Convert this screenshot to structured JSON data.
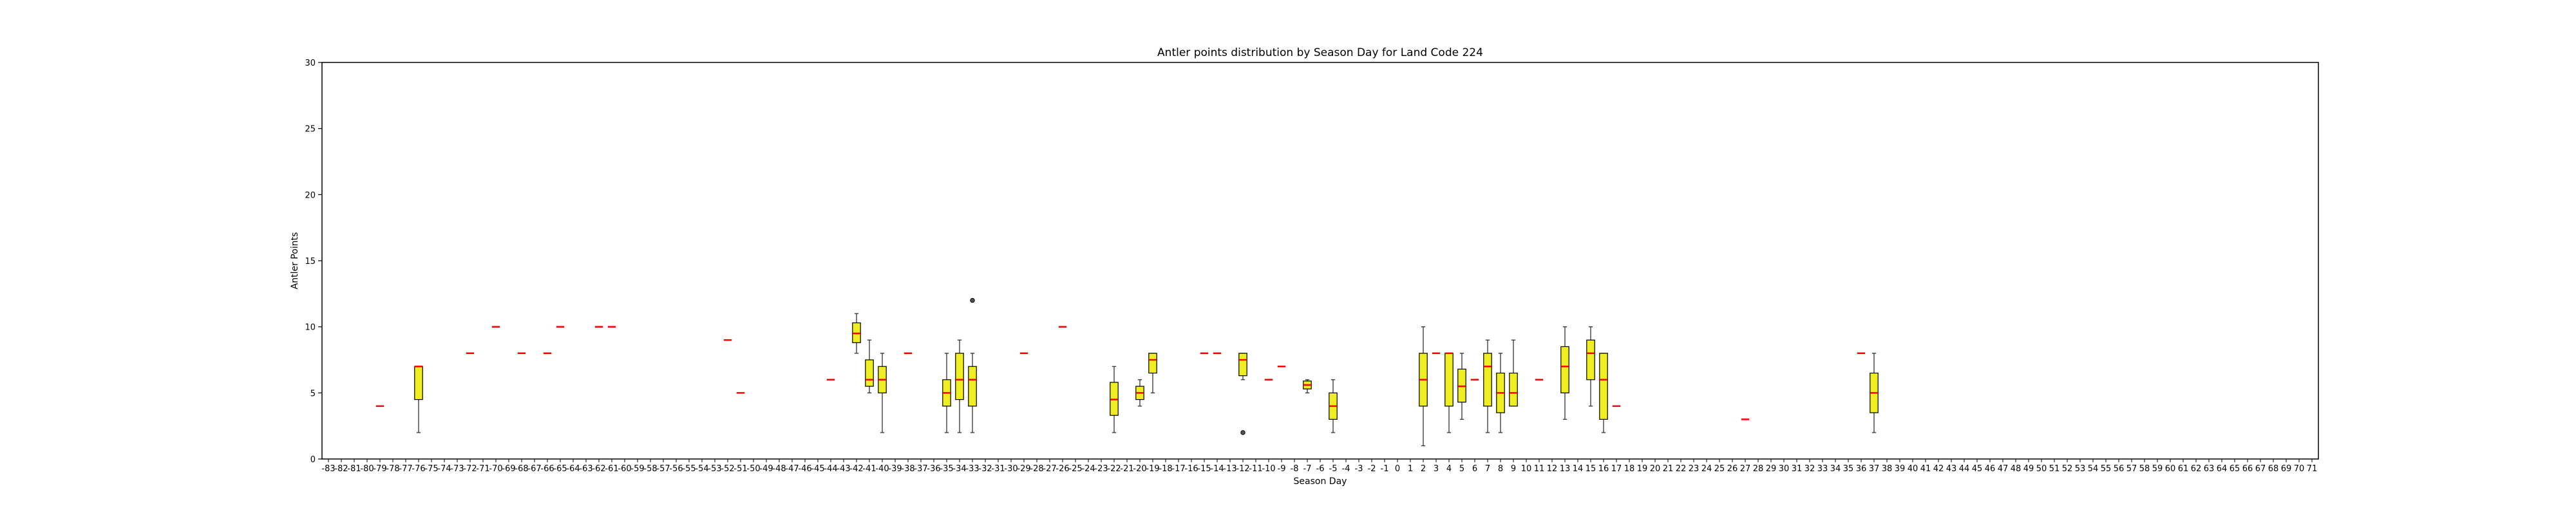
{
  "chart_data": {
    "type": "box",
    "title": "Antler points distribution by Season Day for Land Code 224",
    "xlabel": "Season Day",
    "ylabel": "Antler Points",
    "ylim": [
      0,
      30
    ],
    "yticks": [
      0,
      5,
      10,
      15,
      20,
      25,
      30
    ],
    "x_categories_range": [
      -83,
      71
    ],
    "grid": false,
    "colors": {
      "box_fill": "#eeee22",
      "median": "#ff0000",
      "outline": "#000000",
      "whisker": "#333333"
    },
    "boxes": [
      {
        "day": -79,
        "q1": 4,
        "median": 4,
        "q3": 4,
        "whislo": 4,
        "whishi": 4,
        "fliers": []
      },
      {
        "day": -76,
        "q1": 4.5,
        "median": 7,
        "q3": 7,
        "whislo": 2,
        "whishi": 7,
        "fliers": []
      },
      {
        "day": -72,
        "q1": 8,
        "median": 8,
        "q3": 8,
        "whislo": 8,
        "whishi": 8,
        "fliers": []
      },
      {
        "day": -70,
        "q1": 10,
        "median": 10,
        "q3": 10,
        "whislo": 10,
        "whishi": 10,
        "fliers": []
      },
      {
        "day": -68,
        "q1": 8,
        "median": 8,
        "q3": 8,
        "whislo": 8,
        "whishi": 8,
        "fliers": []
      },
      {
        "day": -66,
        "q1": 8,
        "median": 8,
        "q3": 8,
        "whislo": 8,
        "whishi": 8,
        "fliers": []
      },
      {
        "day": -65,
        "q1": 10,
        "median": 10,
        "q3": 10,
        "whislo": 10,
        "whishi": 10,
        "fliers": []
      },
      {
        "day": -62,
        "q1": 10,
        "median": 10,
        "q3": 10,
        "whislo": 10,
        "whishi": 10,
        "fliers": []
      },
      {
        "day": -61,
        "q1": 10,
        "median": 10,
        "q3": 10,
        "whislo": 10,
        "whishi": 10,
        "fliers": []
      },
      {
        "day": -52,
        "q1": 9,
        "median": 9,
        "q3": 9,
        "whislo": 9,
        "whishi": 9,
        "fliers": []
      },
      {
        "day": -51,
        "q1": 5,
        "median": 5,
        "q3": 5,
        "whislo": 5,
        "whishi": 5,
        "fliers": []
      },
      {
        "day": -44,
        "q1": 6,
        "median": 6,
        "q3": 6,
        "whislo": 6,
        "whishi": 6,
        "fliers": []
      },
      {
        "day": -42,
        "q1": 8.8,
        "median": 9.5,
        "q3": 10.3,
        "whislo": 8,
        "whishi": 11,
        "fliers": []
      },
      {
        "day": -41,
        "q1": 5.5,
        "median": 6,
        "q3": 7.5,
        "whislo": 5,
        "whishi": 9,
        "fliers": []
      },
      {
        "day": -40,
        "q1": 5,
        "median": 6,
        "q3": 7,
        "whislo": 2,
        "whishi": 8,
        "fliers": []
      },
      {
        "day": -38,
        "q1": 8,
        "median": 8,
        "q3": 8,
        "whislo": 8,
        "whishi": 8,
        "fliers": []
      },
      {
        "day": -35,
        "q1": 4,
        "median": 5,
        "q3": 6,
        "whislo": 2,
        "whishi": 8,
        "fliers": []
      },
      {
        "day": -34,
        "q1": 4.5,
        "median": 6,
        "q3": 8,
        "whislo": 2,
        "whishi": 9,
        "fliers": []
      },
      {
        "day": -33,
        "q1": 4,
        "median": 6,
        "q3": 7,
        "whislo": 2,
        "whishi": 8,
        "fliers": [
          12
        ]
      },
      {
        "day": -29,
        "q1": 8,
        "median": 8,
        "q3": 8,
        "whislo": 8,
        "whishi": 8,
        "fliers": []
      },
      {
        "day": -26,
        "q1": 10,
        "median": 10,
        "q3": 10,
        "whislo": 10,
        "whishi": 10,
        "fliers": []
      },
      {
        "day": -22,
        "q1": 3.3,
        "median": 4.5,
        "q3": 5.8,
        "whislo": 2,
        "whishi": 7,
        "fliers": []
      },
      {
        "day": -20,
        "q1": 4.5,
        "median": 5,
        "q3": 5.5,
        "whislo": 4,
        "whishi": 6,
        "fliers": []
      },
      {
        "day": -19,
        "q1": 6.5,
        "median": 7.5,
        "q3": 8,
        "whislo": 5,
        "whishi": 8,
        "fliers": []
      },
      {
        "day": -15,
        "q1": 8,
        "median": 8,
        "q3": 8,
        "whislo": 8,
        "whishi": 8,
        "fliers": []
      },
      {
        "day": -14,
        "q1": 8,
        "median": 8,
        "q3": 8,
        "whislo": 8,
        "whishi": 8,
        "fliers": []
      },
      {
        "day": -12,
        "q1": 6.3,
        "median": 7.5,
        "q3": 8,
        "whislo": 6,
        "whishi": 8,
        "fliers": [
          2
        ]
      },
      {
        "day": -10,
        "q1": 6,
        "median": 6,
        "q3": 6,
        "whislo": 6,
        "whishi": 6,
        "fliers": []
      },
      {
        "day": -9,
        "q1": 7,
        "median": 7,
        "q3": 7,
        "whislo": 7,
        "whishi": 7,
        "fliers": []
      },
      {
        "day": -7,
        "q1": 5.3,
        "median": 5.6,
        "q3": 5.9,
        "whislo": 5,
        "whishi": 6,
        "fliers": []
      },
      {
        "day": -5,
        "q1": 3,
        "median": 4,
        "q3": 5,
        "whislo": 2,
        "whishi": 6,
        "fliers": []
      },
      {
        "day": 2,
        "q1": 4,
        "median": 6,
        "q3": 8,
        "whislo": 1,
        "whishi": 10,
        "fliers": []
      },
      {
        "day": 3,
        "q1": 8,
        "median": 8,
        "q3": 8,
        "whislo": 8,
        "whishi": 8,
        "fliers": []
      },
      {
        "day": 4,
        "q1": 4,
        "median": 8,
        "q3": 8,
        "whislo": 2,
        "whishi": 8,
        "fliers": []
      },
      {
        "day": 5,
        "q1": 4.3,
        "median": 5.5,
        "q3": 6.8,
        "whislo": 3,
        "whishi": 8,
        "fliers": []
      },
      {
        "day": 6,
        "q1": 6,
        "median": 6,
        "q3": 6,
        "whislo": 6,
        "whishi": 6,
        "fliers": []
      },
      {
        "day": 7,
        "q1": 4,
        "median": 7,
        "q3": 8,
        "whislo": 2,
        "whishi": 9,
        "fliers": []
      },
      {
        "day": 8,
        "q1": 3.5,
        "median": 5,
        "q3": 6.5,
        "whislo": 2,
        "whishi": 8,
        "fliers": []
      },
      {
        "day": 9,
        "q1": 4,
        "median": 5,
        "q3": 6.5,
        "whislo": 4,
        "whishi": 9,
        "fliers": []
      },
      {
        "day": 11,
        "q1": 6,
        "median": 6,
        "q3": 6,
        "whislo": 6,
        "whishi": 6,
        "fliers": []
      },
      {
        "day": 13,
        "q1": 5,
        "median": 7,
        "q3": 8.5,
        "whislo": 3,
        "whishi": 10,
        "fliers": []
      },
      {
        "day": 15,
        "q1": 6,
        "median": 8,
        "q3": 9,
        "whislo": 4,
        "whishi": 10,
        "fliers": []
      },
      {
        "day": 16,
        "q1": 3,
        "median": 6,
        "q3": 8,
        "whislo": 2,
        "whishi": 8,
        "fliers": []
      },
      {
        "day": 17,
        "q1": 4,
        "median": 4,
        "q3": 4,
        "whislo": 4,
        "whishi": 4,
        "fliers": []
      },
      {
        "day": 27,
        "q1": 3,
        "median": 3,
        "q3": 3,
        "whislo": 3,
        "whishi": 3,
        "fliers": []
      },
      {
        "day": 36,
        "q1": 8,
        "median": 8,
        "q3": 8,
        "whislo": 8,
        "whishi": 8,
        "fliers": []
      },
      {
        "day": 37,
        "q1": 3.5,
        "median": 5,
        "q3": 6.5,
        "whislo": 2,
        "whishi": 8,
        "fliers": []
      }
    ]
  }
}
